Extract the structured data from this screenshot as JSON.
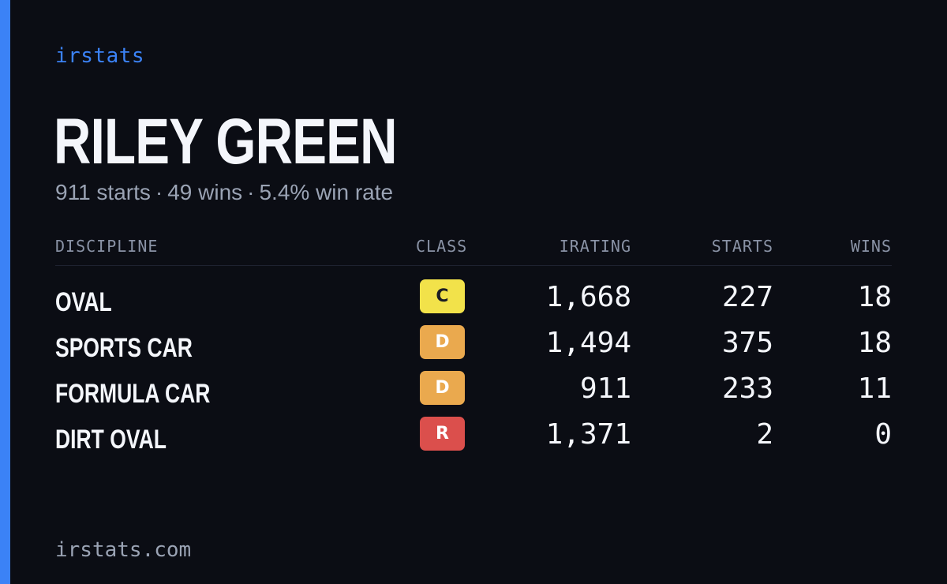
{
  "brand": "irstats",
  "player": {
    "name": "RILEY GREEN",
    "starts_text": "911 starts",
    "wins_text": "49 wins",
    "win_rate_text": "5.4% win rate",
    "separator": "·"
  },
  "table": {
    "headers": {
      "discipline": "DISCIPLINE",
      "class": "CLASS",
      "irating": "IRATING",
      "starts": "STARTS",
      "wins": "WINS"
    },
    "rows": [
      {
        "discipline": "OVAL",
        "class": "C",
        "class_color": "#f2e24a",
        "class_text_light": false,
        "irating": "1,668",
        "starts": "227",
        "wins": "18"
      },
      {
        "discipline": "SPORTS CAR",
        "class": "D",
        "class_color": "#eaa94e",
        "class_text_light": true,
        "irating": "1,494",
        "starts": "375",
        "wins": "18"
      },
      {
        "discipline": "FORMULA CAR",
        "class": "D",
        "class_color": "#eaa94e",
        "class_text_light": true,
        "irating": "911",
        "starts": "233",
        "wins": "11"
      },
      {
        "discipline": "DIRT OVAL",
        "class": "R",
        "class_color": "#db4f4c",
        "class_text_light": true,
        "irating": "1,371",
        "starts": "2",
        "wins": "0"
      }
    ]
  },
  "footer": "irstats.com",
  "colors": {
    "background": "#0b0d14",
    "accent": "#3b82f6"
  }
}
